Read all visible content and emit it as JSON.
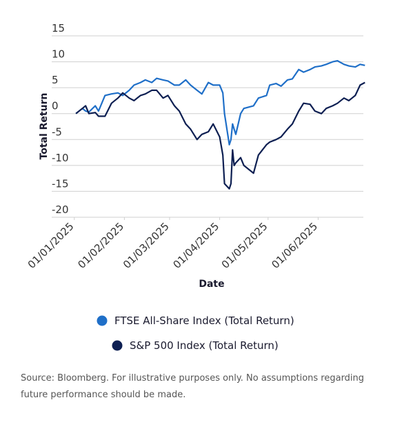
{
  "chart_data": {
    "type": "line",
    "y_label": "Total Return",
    "x_label": "Date",
    "x": [
      "2025-01-02",
      "2025-01-06",
      "2025-01-08",
      "2025-01-10",
      "2025-01-14",
      "2025-01-16",
      "2025-01-20",
      "2025-01-24",
      "2025-01-28",
      "2025-01-31",
      "2025-02-04",
      "2025-02-07",
      "2025-02-11",
      "2025-02-14",
      "2025-02-18",
      "2025-02-21",
      "2025-02-25",
      "2025-02-28",
      "2025-03-04",
      "2025-03-07",
      "2025-03-11",
      "2025-03-14",
      "2025-03-18",
      "2025-03-21",
      "2025-03-25",
      "2025-03-28",
      "2025-04-01",
      "2025-04-03",
      "2025-04-04",
      "2025-04-07",
      "2025-04-08",
      "2025-04-09",
      "2025-04-10",
      "2025-04-11",
      "2025-04-14",
      "2025-04-16",
      "2025-04-22",
      "2025-04-25",
      "2025-04-30",
      "2025-05-02",
      "2025-05-06",
      "2025-05-09",
      "2025-05-13",
      "2025-05-16",
      "2025-05-20",
      "2025-05-23",
      "2025-05-27",
      "2025-05-30",
      "2025-06-03",
      "2025-06-06",
      "2025-06-10",
      "2025-06-13",
      "2025-06-17",
      "2025-06-20",
      "2025-06-24",
      "2025-06-27",
      "2025-06-30"
    ],
    "series": [
      {
        "name": "FTSE All-Share Index (Total Return)",
        "color": "#1f6fc8",
        "values": [
          0,
          1,
          0.5,
          0.3,
          1.5,
          0.5,
          3.5,
          3.8,
          4,
          3.5,
          4.5,
          5.5,
          6,
          6.5,
          6,
          6.8,
          6.5,
          6.3,
          5.5,
          5.5,
          6.5,
          5.5,
          4.5,
          3.8,
          6,
          5.5,
          5.5,
          4,
          0,
          -6,
          -5,
          -2,
          -3,
          -4,
          0,
          1,
          1.5,
          3,
          3.5,
          5.5,
          5.8,
          5.3,
          6.5,
          6.7,
          8.5,
          8,
          8.5,
          9,
          9.2,
          9.5,
          10,
          10.2,
          9.5,
          9.2,
          9,
          9.5,
          9.3
        ]
      },
      {
        "name": "S&P 500 Index (Total Return)",
        "color": "#0d1f52",
        "values": [
          0,
          1,
          1.5,
          0,
          0.2,
          -0.5,
          -0.5,
          2,
          3,
          4,
          3,
          2.5,
          3.5,
          3.8,
          4.5,
          4.5,
          3,
          3.5,
          1.5,
          0.5,
          -2,
          -3,
          -5,
          -4,
          -3.5,
          -2,
          -4.5,
          -8,
          -13.5,
          -14.5,
          -13.5,
          -7,
          -10,
          -9.5,
          -8.5,
          -10,
          -11.5,
          -8,
          -6,
          -5.5,
          -5,
          -4.5,
          -3,
          -2,
          0.5,
          2,
          1.8,
          0.5,
          0,
          1,
          1.5,
          2,
          3,
          2.5,
          3.5,
          5.5,
          6
        ]
      }
    ],
    "xlim": [
      "2024-12-18",
      "2025-06-29"
    ],
    "xticks": [
      {
        "value": "2025-01-01",
        "label": "01/01/2025"
      },
      {
        "value": "2025-02-01",
        "label": "01/02/2025"
      },
      {
        "value": "2025-03-01",
        "label": "01/03/2025"
      },
      {
        "value": "2025-04-01",
        "label": "01/04/2025"
      },
      {
        "value": "2025-05-01",
        "label": "01/05/2025"
      },
      {
        "value": "2025-06-01",
        "label": "01/06/2025"
      }
    ],
    "ylim": [
      -20,
      15
    ],
    "yticks": [
      -20,
      -15,
      -10,
      -5,
      0,
      5,
      10,
      15
    ],
    "grid": true,
    "source": "Source: Bloomberg. For illustrative purposes only. No assumptions regarding future performance should be made."
  }
}
